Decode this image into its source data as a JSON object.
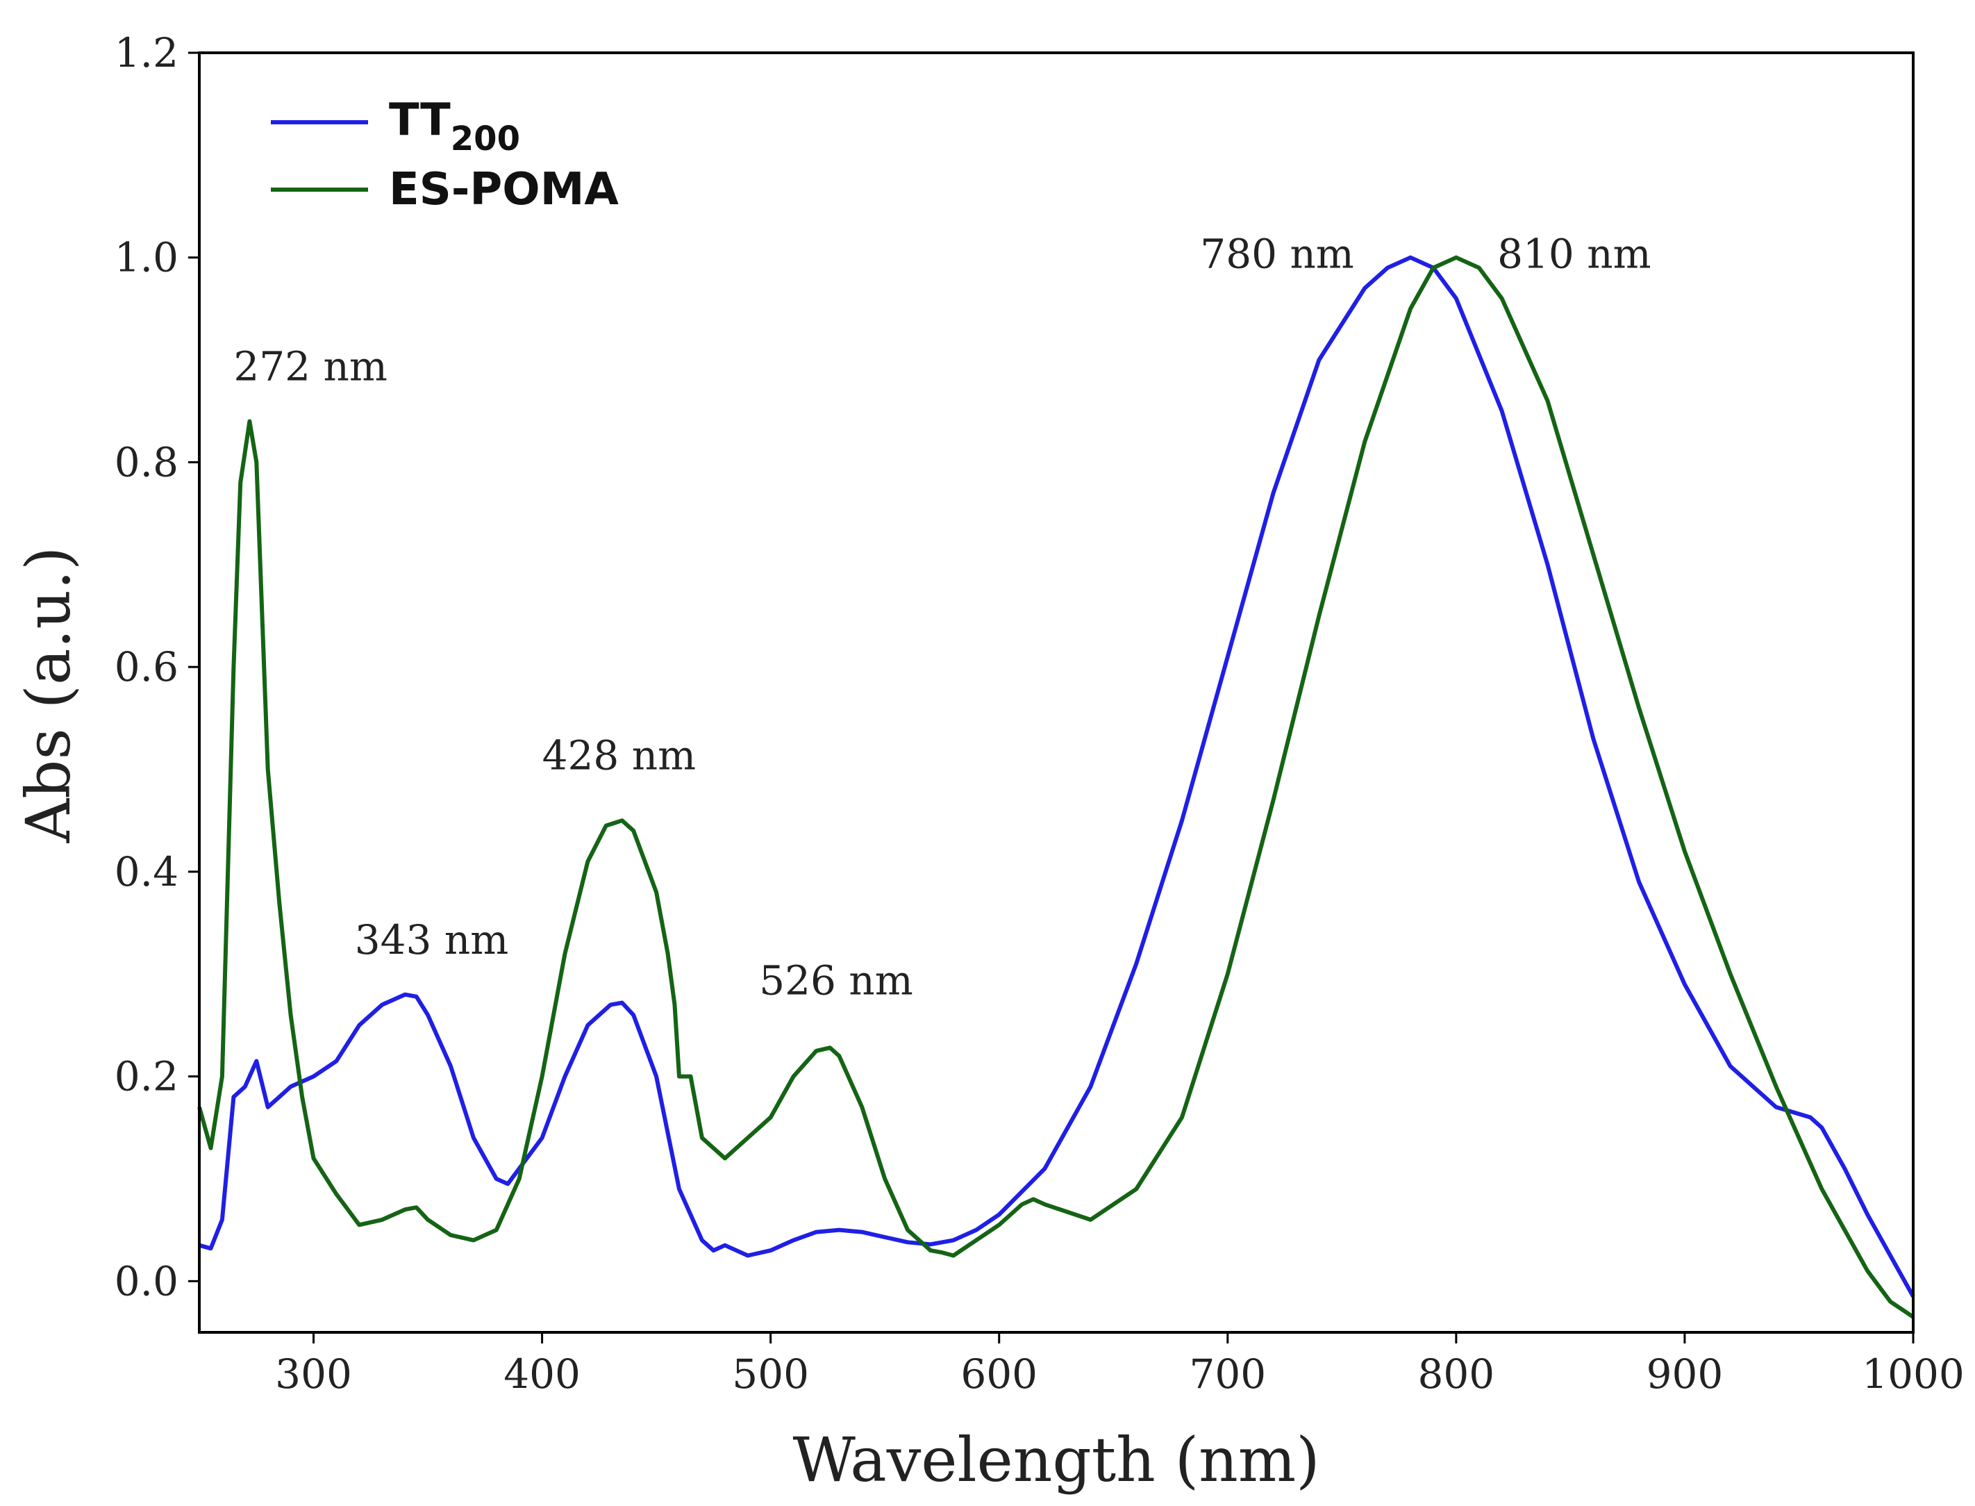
{
  "chart_data": {
    "type": "line",
    "title": "",
    "xlabel": "Wavelength (nm)",
    "ylabel": "Abs (a.u.)",
    "xlim": [
      250,
      1000
    ],
    "ylim": [
      -0.05,
      1.2
    ],
    "xticks": [
      300,
      400,
      500,
      600,
      700,
      800,
      900,
      1000
    ],
    "yticks": [
      0.0,
      0.2,
      0.4,
      0.6,
      0.8,
      1.0,
      1.2
    ],
    "xtick_labels": [
      "300",
      "400",
      "500",
      "600",
      "700",
      "800",
      "900",
      "1000"
    ],
    "ytick_labels": [
      "0.0",
      "0.2",
      "0.4",
      "0.6",
      "0.8",
      "1.0",
      "1.2"
    ],
    "legend_position": "top-left",
    "series": [
      {
        "name": "TT200",
        "label_main": "TT",
        "label_sub": "200",
        "color": "#1f1fe6",
        "x": [
          250,
          255,
          260,
          265,
          270,
          275,
          280,
          285,
          290,
          300,
          310,
          320,
          330,
          340,
          345,
          350,
          360,
          370,
          380,
          385,
          390,
          400,
          410,
          420,
          430,
          435,
          440,
          450,
          460,
          470,
          475,
          480,
          490,
          500,
          510,
          520,
          530,
          540,
          550,
          560,
          570,
          580,
          590,
          600,
          620,
          640,
          660,
          680,
          700,
          720,
          740,
          760,
          770,
          780,
          790,
          800,
          820,
          840,
          860,
          880,
          900,
          920,
          940,
          955,
          960,
          970,
          980,
          990,
          1000
        ],
        "y": [
          0.035,
          0.032,
          0.06,
          0.18,
          0.19,
          0.215,
          0.17,
          0.18,
          0.19,
          0.2,
          0.215,
          0.25,
          0.27,
          0.28,
          0.278,
          0.26,
          0.21,
          0.14,
          0.1,
          0.095,
          0.11,
          0.14,
          0.2,
          0.25,
          0.27,
          0.272,
          0.26,
          0.2,
          0.09,
          0.04,
          0.03,
          0.035,
          0.025,
          0.03,
          0.04,
          0.048,
          0.05,
          0.048,
          0.043,
          0.038,
          0.036,
          0.04,
          0.05,
          0.065,
          0.11,
          0.19,
          0.31,
          0.45,
          0.61,
          0.77,
          0.9,
          0.97,
          0.99,
          1.0,
          0.99,
          0.96,
          0.85,
          0.7,
          0.53,
          0.39,
          0.29,
          0.21,
          0.17,
          0.16,
          0.15,
          0.11,
          0.065,
          0.025,
          -0.015
        ]
      },
      {
        "name": "ES-POMA",
        "label_main": "ES-POMA",
        "label_sub": "",
        "color": "#146414",
        "x": [
          250,
          255,
          260,
          265,
          268,
          272,
          275,
          280,
          285,
          290,
          295,
          300,
          310,
          320,
          330,
          340,
          345,
          350,
          360,
          370,
          375,
          380,
          390,
          400,
          410,
          420,
          428,
          435,
          440,
          450,
          455,
          458,
          460,
          465,
          470,
          480,
          490,
          500,
          510,
          520,
          526,
          530,
          540,
          550,
          560,
          570,
          575,
          580,
          590,
          600,
          610,
          615,
          620,
          640,
          660,
          680,
          700,
          720,
          740,
          760,
          780,
          790,
          800,
          810,
          820,
          840,
          860,
          880,
          900,
          920,
          940,
          950,
          960,
          970,
          980,
          990,
          1000
        ],
        "y": [
          0.17,
          0.13,
          0.2,
          0.6,
          0.78,
          0.84,
          0.8,
          0.5,
          0.37,
          0.26,
          0.18,
          0.12,
          0.085,
          0.055,
          0.06,
          0.07,
          0.072,
          0.06,
          0.045,
          0.04,
          0.045,
          0.05,
          0.1,
          0.2,
          0.32,
          0.41,
          0.445,
          0.45,
          0.44,
          0.38,
          0.32,
          0.27,
          0.2,
          0.2,
          0.14,
          0.12,
          0.14,
          0.16,
          0.2,
          0.225,
          0.228,
          0.22,
          0.17,
          0.1,
          0.05,
          0.03,
          0.028,
          0.025,
          0.04,
          0.055,
          0.075,
          0.08,
          0.075,
          0.06,
          0.09,
          0.16,
          0.3,
          0.47,
          0.65,
          0.82,
          0.95,
          0.99,
          1.0,
          0.99,
          0.96,
          0.86,
          0.71,
          0.56,
          0.42,
          0.3,
          0.19,
          0.14,
          0.09,
          0.05,
          0.01,
          -0.02,
          -0.035
        ]
      }
    ],
    "annotations": [
      {
        "text": "272 nm",
        "x": 265,
        "y": 0.88
      },
      {
        "text": "343 nm",
        "x": 318,
        "y": 0.32
      },
      {
        "text": "428 nm",
        "x": 400,
        "y": 0.5
      },
      {
        "text": "526 nm",
        "x": 495,
        "y": 0.28
      },
      {
        "text": "780 nm",
        "x": 688,
        "y": 0.99
      },
      {
        "text": "810 nm",
        "x": 818,
        "y": 0.99
      }
    ]
  }
}
